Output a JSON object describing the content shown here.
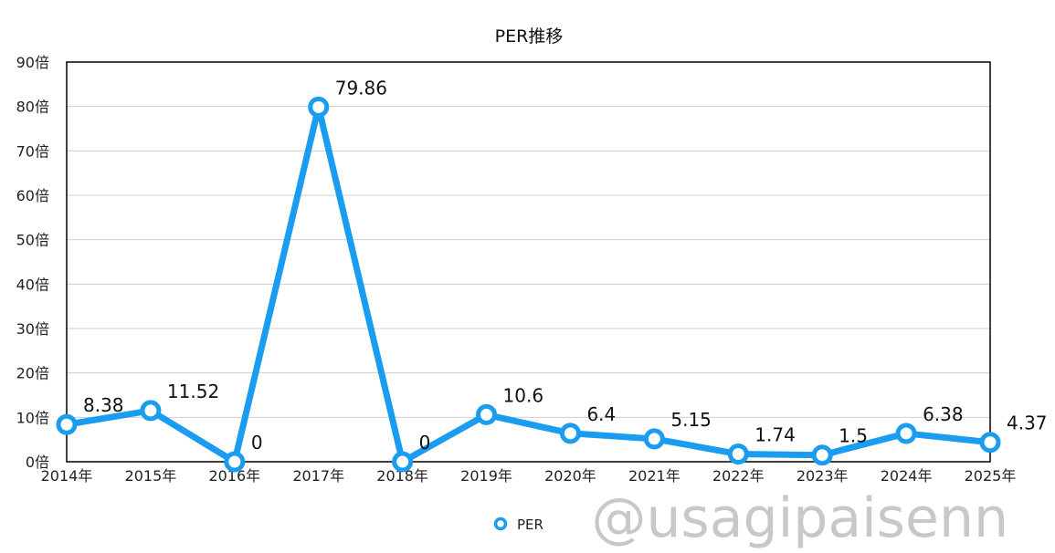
{
  "chart_data": {
    "type": "line",
    "title": "PER推移",
    "xlabel": "",
    "ylabel": "",
    "categories": [
      "2014年",
      "2015年",
      "2016年",
      "2017年",
      "2018年",
      "2019年",
      "2020年",
      "2021年",
      "2022年",
      "2023年",
      "2024年",
      "2025年"
    ],
    "series": [
      {
        "name": "PER",
        "values": [
          8.38,
          11.52,
          0,
          79.86,
          0,
          10.6,
          6.4,
          5.15,
          1.74,
          1.5,
          6.38,
          4.37
        ],
        "labels": [
          "8.38",
          "11.52",
          "0",
          "79.86",
          "0",
          "10.6",
          "6.4",
          "5.15",
          "1.74",
          "1.5",
          "6.38",
          "4.37"
        ],
        "color": "#1a9cf0"
      }
    ],
    "ylim": [
      0,
      90
    ],
    "yticks": [
      {
        "value": 0,
        "label": "0倍"
      },
      {
        "value": 10,
        "label": "10倍"
      },
      {
        "value": 20,
        "label": "20倍"
      },
      {
        "value": 30,
        "label": "30倍"
      },
      {
        "value": 40,
        "label": "40倍"
      },
      {
        "value": 50,
        "label": "50倍"
      },
      {
        "value": 60,
        "label": "60倍"
      },
      {
        "value": 70,
        "label": "70倍"
      },
      {
        "value": 80,
        "label": "80倍"
      },
      {
        "value": 90,
        "label": "90倍"
      }
    ],
    "grid": true,
    "legend_position": "bottom-center"
  },
  "watermark": "@usagipaisenn",
  "colors": {
    "series": "#1a9cf0",
    "grid": "#cfcfcf",
    "frame": "#000000",
    "watermark": "#c8c8c8"
  }
}
